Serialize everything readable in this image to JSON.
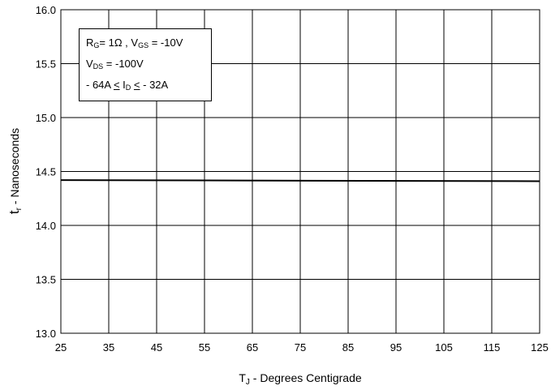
{
  "chart_data": {
    "type": "line",
    "title": "",
    "xlabel": {
      "main": "T",
      "sub": "J",
      "rest": " - Degrees Centigrade"
    },
    "ylabel": {
      "main": "t",
      "sub": "r",
      "rest": " - Nanoseconds"
    },
    "xlim": [
      25,
      125
    ],
    "ylim": [
      13.0,
      16.0
    ],
    "x_ticks": [
      "25",
      "35",
      "45",
      "55",
      "65",
      "75",
      "85",
      "95",
      "105",
      "115",
      "125"
    ],
    "y_ticks": [
      "13.0",
      "13.5",
      "14.0",
      "14.5",
      "15.0",
      "15.5",
      "16.0"
    ],
    "grid": true,
    "series": [
      {
        "x": [
          25,
          125
        ],
        "y": [
          14.42,
          14.41
        ],
        "color": "#000000"
      }
    ],
    "annotation": {
      "line1": {
        "a": "R",
        "a_sub": "G",
        "b": "= 1Ω , V",
        "b_sub": "GS",
        "c": " = -10V"
      },
      "line2": {
        "a": "V",
        "a_sub": "DS",
        "b": " = -100V"
      },
      "line3": {
        "a": "- 64A ",
        "lte1": "<",
        "b": " I",
        "b_sub": "D",
        "c": " ",
        "lte2": "<",
        "d": " - 32A"
      }
    }
  }
}
